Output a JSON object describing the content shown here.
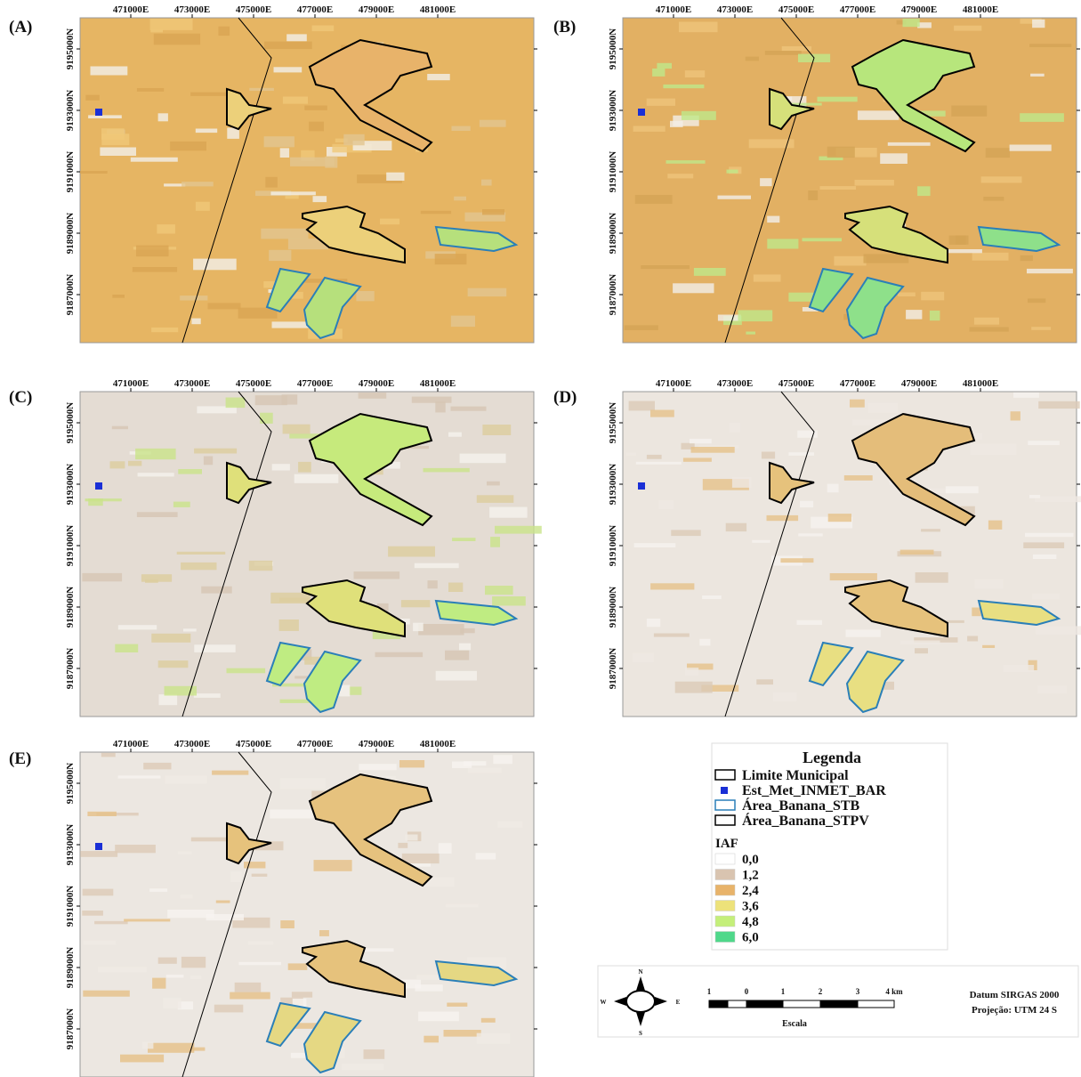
{
  "panels": [
    {
      "label": "(A)"
    },
    {
      "label": "(B)"
    },
    {
      "label": "(C)"
    },
    {
      "label": "(D)"
    },
    {
      "label": "(E)"
    }
  ],
  "x_ticks": [
    "471000E",
    "473000E",
    "475000E",
    "477000E",
    "479000E",
    "481000E"
  ],
  "y_ticks": [
    "9195000N",
    "9193000N",
    "9191000N",
    "9189000N",
    "9187000N"
  ],
  "legend": {
    "title": "Legenda",
    "items": [
      "Limite Municipal",
      "Est_Met_INMET_BAR",
      "Área_Banana_STB",
      "Área_Banana_STPV"
    ],
    "iaf_title": "IAF",
    "classes": [
      {
        "label": "0,0",
        "color": "#ffffff"
      },
      {
        "label": "1,2",
        "color": "#d9c4b0"
      },
      {
        "label": "2,4",
        "color": "#e8b36a"
      },
      {
        "label": "3,6",
        "color": "#ede27a"
      },
      {
        "label": "4,8",
        "color": "#c4ef7a"
      },
      {
        "label": "6,0",
        "color": "#4fd88a"
      }
    ]
  },
  "compass": {
    "n": "N",
    "s": "S",
    "e": "E",
    "w": "W"
  },
  "scale": {
    "labels": [
      "1",
      "0",
      "1",
      "2",
      "3",
      "4 km"
    ],
    "title": "Escala"
  },
  "datum": [
    "Datum SIRGAS 2000",
    "Projeção: UTM 24 S"
  ]
}
